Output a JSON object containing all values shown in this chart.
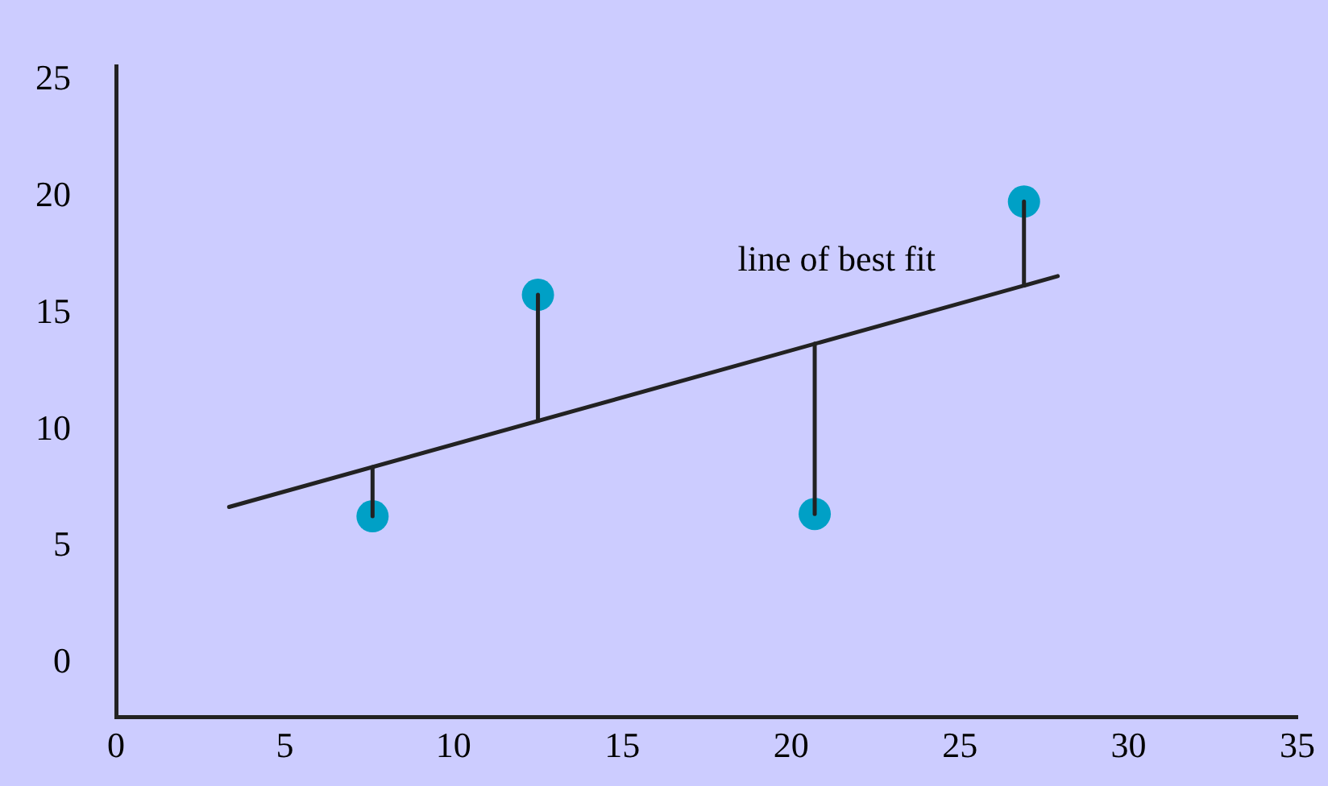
{
  "chart_data": {
    "type": "scatter",
    "series": [
      {
        "color": "#00a0c6",
        "marker": "circle",
        "x": [
          7.6,
          12.5,
          20.7,
          26.9
        ],
        "values": [
          6.3,
          15.8,
          6.4,
          19.8
        ]
      },
      {
        "type": "line",
        "color": "#222222",
        "marker": "none",
        "x": [
          3.35,
          27.9
        ],
        "values": [
          6.7,
          16.6
        ]
      },
      {
        "type": "line",
        "color": "#222222",
        "marker": "none",
        "x": [
          7.6,
          7.6
        ],
        "values": [
          6.3,
          8.41
        ]
      },
      {
        "type": "line",
        "color": "#222222",
        "marker": "none",
        "x": [
          12.5,
          12.5
        ],
        "values": [
          15.8,
          10.39
        ]
      },
      {
        "type": "line",
        "color": "#222222",
        "marker": "none",
        "x": [
          20.7,
          20.7
        ],
        "values": [
          6.4,
          13.7
        ]
      },
      {
        "type": "line",
        "color": "#222222",
        "marker": "none",
        "x": [
          26.9,
          26.9
        ],
        "values": [
          19.8,
          16.2
        ]
      }
    ],
    "xlim": [
      0,
      35
    ],
    "xticks": [
      0,
      5,
      10,
      15,
      20,
      25,
      30,
      35
    ],
    "ylim": [
      -2.3,
      25.6
    ],
    "yticks": [
      0,
      5,
      10,
      15,
      20,
      25
    ],
    "grid": false,
    "legend": false,
    "annotations": [
      "line of best fit"
    ]
  }
}
